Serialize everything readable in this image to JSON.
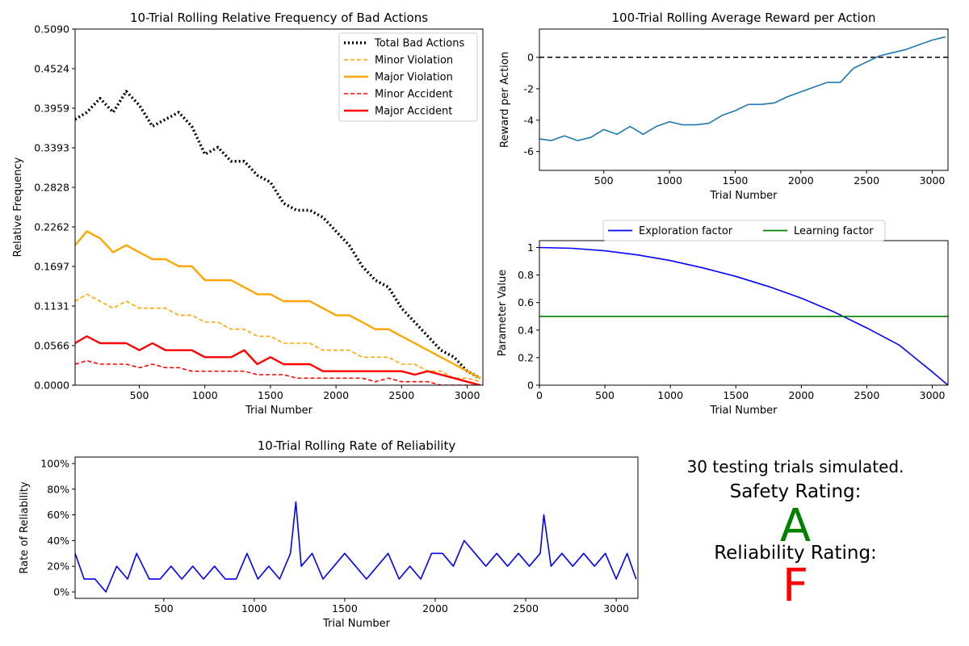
{
  "colors": {
    "total_bad": "#000000",
    "violation": "#ffa500",
    "accident": "#ff0000",
    "reward": "#1f77b4",
    "exploration": "#0000ff",
    "learning": "#008000",
    "reliability": "#0000ff",
    "safety_grade": "#008000",
    "reliability_grade": "#ff0000"
  },
  "chart_data": [
    {
      "type": "line",
      "title": "10-Trial Rolling Relative Frequency of Bad Actions",
      "xlabel": "Trial Number",
      "ylabel": "Relative Frequency",
      "xlim": [
        10,
        3120
      ],
      "ylim": [
        0,
        0.509
      ],
      "xticks": [
        500,
        1000,
        1500,
        2000,
        2500,
        3000
      ],
      "yticks": [
        0.0,
        0.0566,
        0.1131,
        0.1697,
        0.2262,
        0.2828,
        0.3393,
        0.3959,
        0.4524,
        0.509
      ],
      "ytick_labels": [
        "0.0000",
        "0.0566",
        "0.1131",
        "0.1697",
        "0.2262",
        "0.2828",
        "0.3393",
        "0.3959",
        "0.4524",
        "0.5090"
      ],
      "legend_position": "top-right",
      "x": [
        10,
        100,
        200,
        300,
        400,
        500,
        600,
        700,
        800,
        900,
        1000,
        1100,
        1200,
        1300,
        1400,
        1500,
        1600,
        1700,
        1800,
        1900,
        2000,
        2100,
        2200,
        2300,
        2400,
        2500,
        2600,
        2700,
        2800,
        2900,
        3000,
        3100
      ],
      "series": [
        {
          "name": "Total Bad Actions",
          "style": "dotted",
          "values": [
            0.38,
            0.39,
            0.41,
            0.39,
            0.42,
            0.4,
            0.37,
            0.38,
            0.39,
            0.37,
            0.33,
            0.34,
            0.32,
            0.32,
            0.3,
            0.29,
            0.26,
            0.25,
            0.25,
            0.24,
            0.22,
            0.2,
            0.17,
            0.15,
            0.14,
            0.11,
            0.09,
            0.07,
            0.05,
            0.04,
            0.02,
            0.01
          ]
        },
        {
          "name": "Minor Violation",
          "style": "dashed",
          "values": [
            0.12,
            0.13,
            0.12,
            0.11,
            0.12,
            0.11,
            0.11,
            0.11,
            0.1,
            0.1,
            0.09,
            0.09,
            0.08,
            0.08,
            0.07,
            0.07,
            0.06,
            0.06,
            0.06,
            0.05,
            0.05,
            0.05,
            0.04,
            0.04,
            0.04,
            0.03,
            0.03,
            0.02,
            0.02,
            0.01,
            0.01,
            0.005
          ]
        },
        {
          "name": "Major Violation",
          "style": "solid",
          "values": [
            0.2,
            0.22,
            0.21,
            0.19,
            0.2,
            0.19,
            0.18,
            0.18,
            0.17,
            0.17,
            0.15,
            0.15,
            0.15,
            0.14,
            0.13,
            0.13,
            0.12,
            0.12,
            0.12,
            0.11,
            0.1,
            0.1,
            0.09,
            0.08,
            0.08,
            0.07,
            0.06,
            0.05,
            0.04,
            0.03,
            0.02,
            0.01
          ]
        },
        {
          "name": "Minor Accident",
          "style": "dashed",
          "values": [
            0.03,
            0.035,
            0.03,
            0.03,
            0.03,
            0.025,
            0.03,
            0.025,
            0.025,
            0.02,
            0.02,
            0.02,
            0.02,
            0.02,
            0.015,
            0.015,
            0.015,
            0.01,
            0.01,
            0.01,
            0.01,
            0.01,
            0.01,
            0.005,
            0.01,
            0.005,
            0.005,
            0.005,
            0.0,
            0.0,
            0.0,
            0.0
          ]
        },
        {
          "name": "Major Accident",
          "style": "solid",
          "values": [
            0.06,
            0.07,
            0.06,
            0.06,
            0.06,
            0.05,
            0.06,
            0.05,
            0.05,
            0.05,
            0.04,
            0.04,
            0.04,
            0.05,
            0.03,
            0.04,
            0.03,
            0.03,
            0.03,
            0.02,
            0.02,
            0.02,
            0.02,
            0.02,
            0.02,
            0.02,
            0.015,
            0.02,
            0.015,
            0.01,
            0.005,
            0.0
          ]
        }
      ]
    },
    {
      "type": "line",
      "title": "100-Trial Rolling Average Reward per Action",
      "xlabel": "Trial Number",
      "ylabel": "Reward per Action",
      "xlim": [
        10,
        3120
      ],
      "ylim": [
        -7.2,
        1.8
      ],
      "xticks": [
        500,
        1000,
        1500,
        2000,
        2500,
        3000
      ],
      "yticks": [
        -6,
        -4,
        -2,
        0
      ],
      "reference_line": {
        "y": 0,
        "style": "dashed"
      },
      "x": [
        10,
        100,
        200,
        300,
        400,
        500,
        600,
        700,
        800,
        900,
        1000,
        1100,
        1200,
        1300,
        1400,
        1500,
        1600,
        1700,
        1800,
        1900,
        2000,
        2100,
        2200,
        2300,
        2400,
        2500,
        2600,
        2700,
        2800,
        2900,
        3000,
        3100
      ],
      "series": [
        {
          "name": "",
          "values": [
            -5.2,
            -5.3,
            -5.0,
            -5.3,
            -5.1,
            -4.6,
            -4.9,
            -4.4,
            -4.9,
            -4.4,
            -4.1,
            -4.3,
            -4.3,
            -4.2,
            -3.7,
            -3.4,
            -3.0,
            -3.0,
            -2.9,
            -2.5,
            -2.2,
            -1.9,
            -1.6,
            -1.6,
            -0.7,
            -0.3,
            0.1,
            0.3,
            0.5,
            0.8,
            1.1,
            1.3
          ]
        }
      ]
    },
    {
      "type": "line",
      "title": "",
      "xlabel": "Trial Number",
      "ylabel": "Parameter Value",
      "xlim": [
        0,
        3120
      ],
      "ylim": [
        0.0,
        1.05
      ],
      "xticks": [
        0,
        500,
        1000,
        1500,
        2000,
        2500,
        3000
      ],
      "yticks": [
        0.0,
        0.2,
        0.4,
        0.6,
        0.8,
        1.0
      ],
      "legend_position": "top-center",
      "x": [
        0,
        250,
        500,
        750,
        1000,
        1250,
        1500,
        1750,
        2000,
        2250,
        2500,
        2750,
        3000,
        3120
      ],
      "series": [
        {
          "name": "Exploration factor",
          "values": [
            1.0,
            0.994,
            0.976,
            0.946,
            0.905,
            0.852,
            0.79,
            0.717,
            0.632,
            0.532,
            0.416,
            0.29,
            0.097,
            0.0
          ]
        },
        {
          "name": "Learning factor",
          "values": [
            0.5,
            0.5,
            0.5,
            0.5,
            0.5,
            0.5,
            0.5,
            0.5,
            0.5,
            0.5,
            0.5,
            0.5,
            0.5,
            0.5
          ]
        }
      ]
    },
    {
      "type": "line",
      "title": "10-Trial Rolling Rate of Reliability",
      "xlabel": "Trial Number",
      "ylabel": "Rate of Reliability",
      "xlim": [
        10,
        3120
      ],
      "ylim": [
        -0.05,
        1.05
      ],
      "xticks": [
        500,
        1000,
        1500,
        2000,
        2500,
        3000
      ],
      "yticks": [
        0.0,
        0.2,
        0.4,
        0.6,
        0.8,
        1.0
      ],
      "ytick_labels": [
        "0%",
        "20%",
        "40%",
        "60%",
        "80%",
        "100%"
      ],
      "x": [
        10,
        60,
        120,
        180,
        240,
        300,
        350,
        420,
        480,
        540,
        600,
        660,
        720,
        780,
        840,
        900,
        960,
        1020,
        1080,
        1140,
        1200,
        1230,
        1260,
        1320,
        1380,
        1440,
        1500,
        1560,
        1620,
        1680,
        1740,
        1800,
        1860,
        1920,
        1980,
        2040,
        2100,
        2160,
        2220,
        2280,
        2340,
        2400,
        2460,
        2520,
        2580,
        2600,
        2640,
        2700,
        2760,
        2820,
        2880,
        2940,
        3000,
        3060,
        3110
      ],
      "series": [
        {
          "name": "",
          "values": [
            0.3,
            0.1,
            0.1,
            0.0,
            0.2,
            0.1,
            0.3,
            0.1,
            0.1,
            0.2,
            0.1,
            0.2,
            0.1,
            0.2,
            0.1,
            0.1,
            0.3,
            0.1,
            0.2,
            0.1,
            0.3,
            0.7,
            0.2,
            0.3,
            0.1,
            0.2,
            0.3,
            0.2,
            0.1,
            0.2,
            0.3,
            0.1,
            0.2,
            0.1,
            0.3,
            0.3,
            0.2,
            0.4,
            0.3,
            0.2,
            0.3,
            0.2,
            0.3,
            0.2,
            0.3,
            0.6,
            0.2,
            0.3,
            0.2,
            0.3,
            0.2,
            0.3,
            0.1,
            0.3,
            0.1
          ]
        }
      ]
    }
  ],
  "summary": {
    "trials_text": "30 testing trials simulated.",
    "safety_label": "Safety Rating:",
    "safety_grade": "A",
    "reliability_label": "Reliability Rating:",
    "reliability_grade": "F"
  }
}
